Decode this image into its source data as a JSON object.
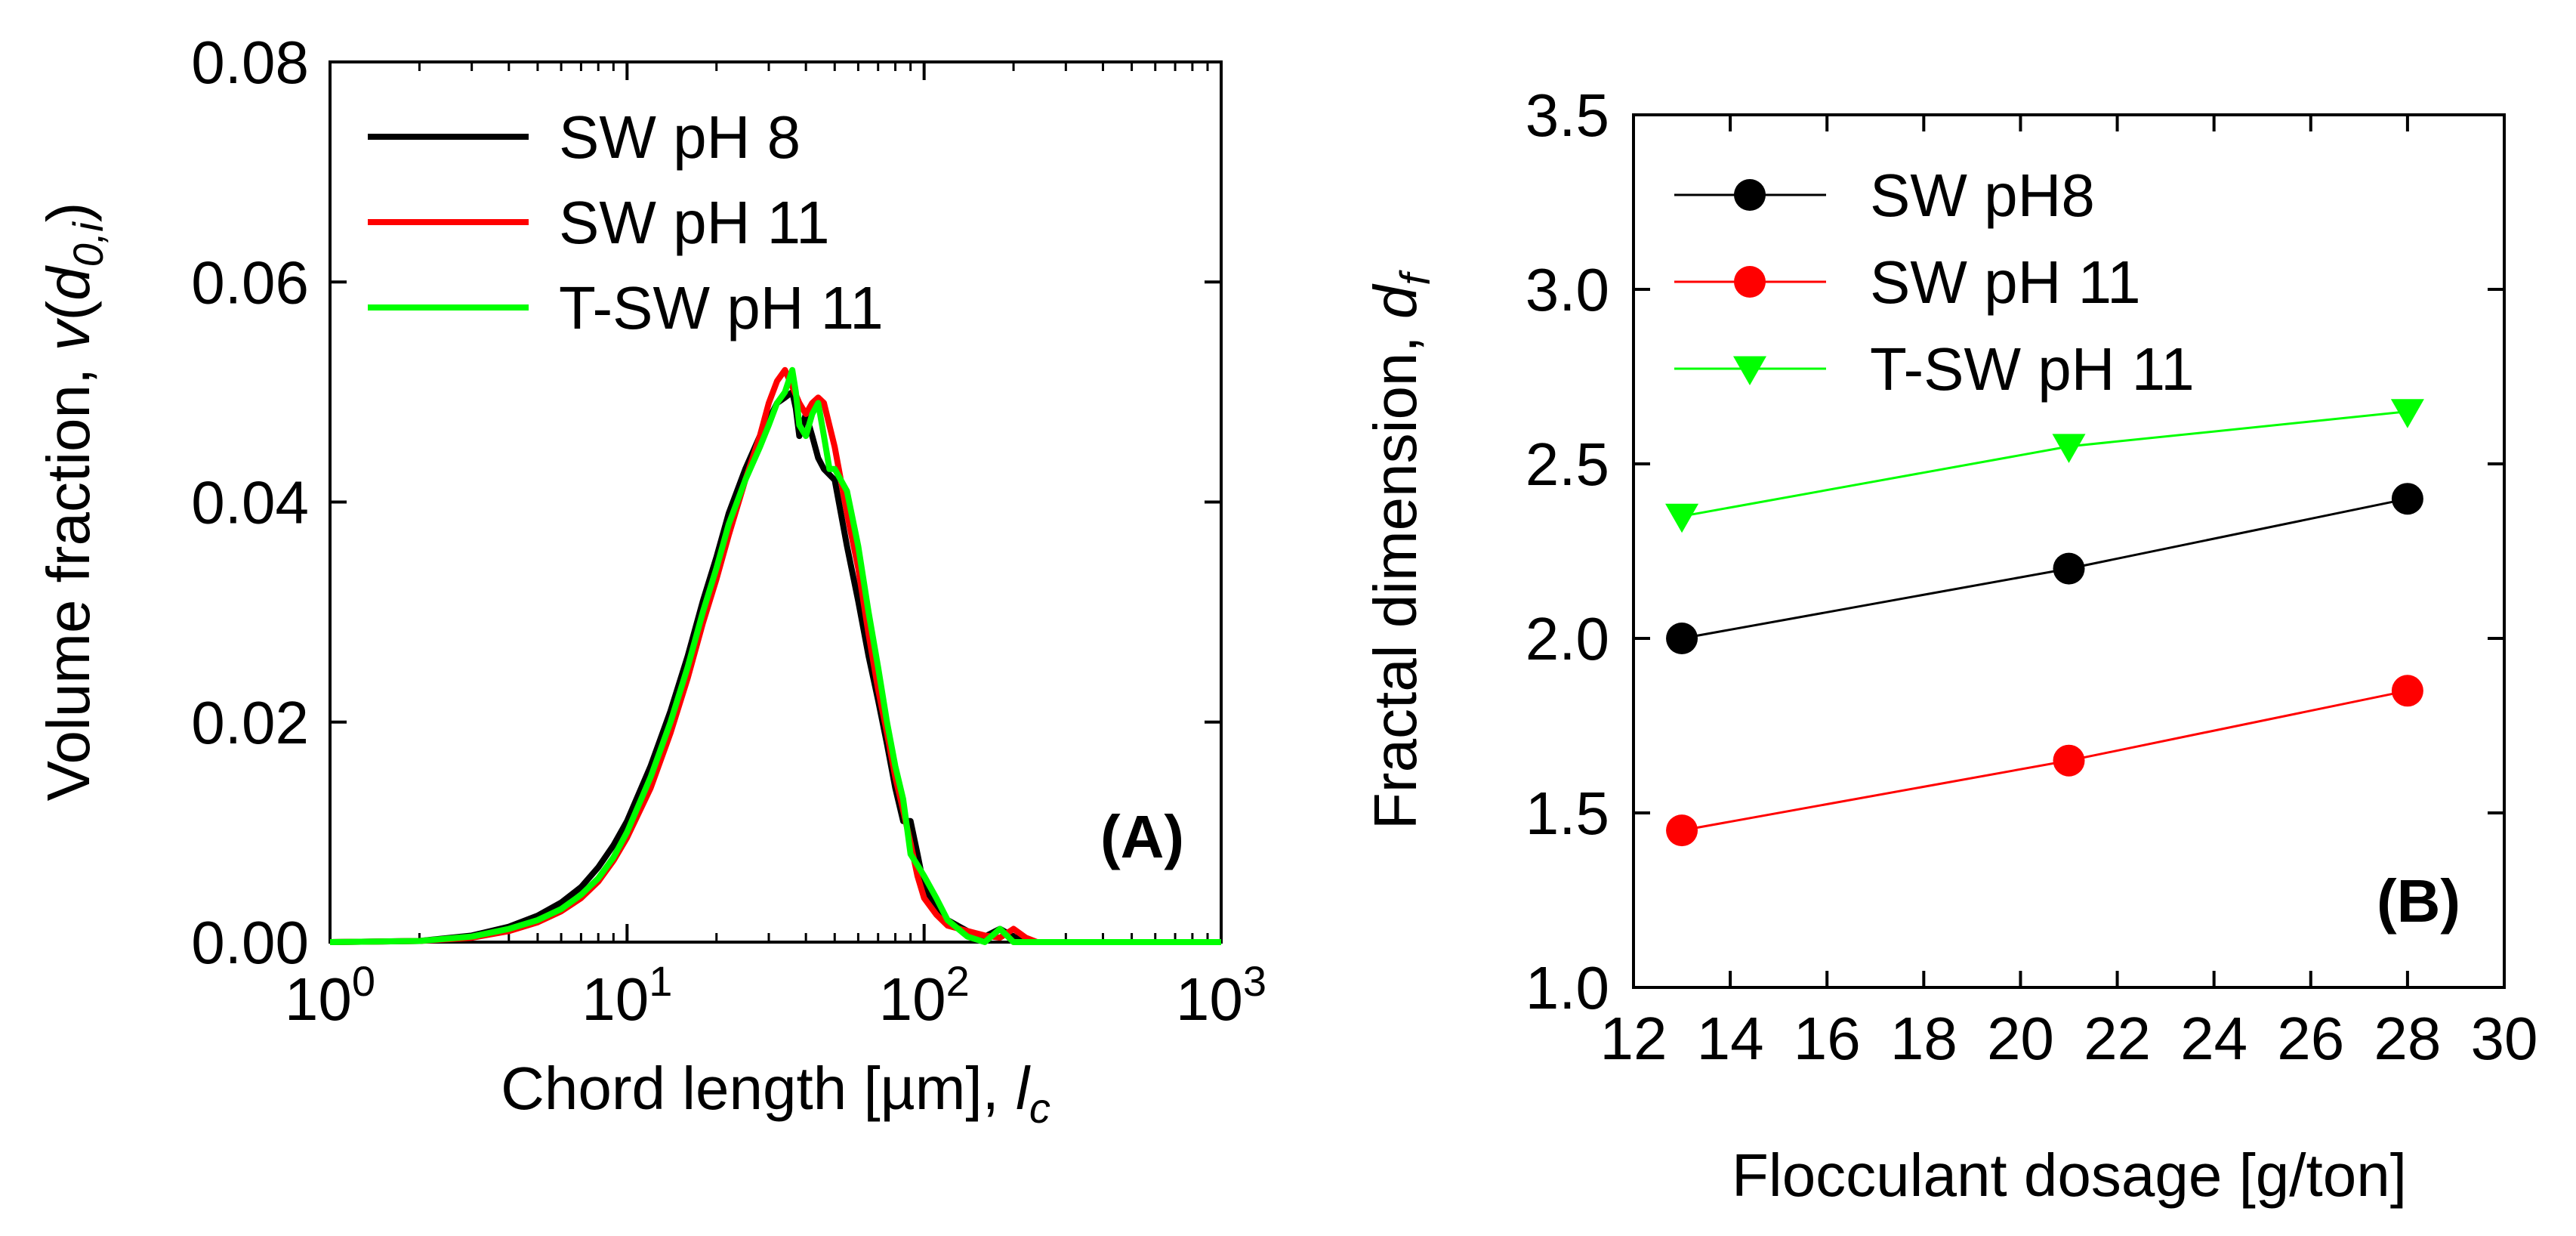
{
  "colors": {
    "sw_ph8": "#000000",
    "sw_ph11": "#ff0000",
    "tsw_ph11": "#00ff00"
  },
  "chart_data": [
    {
      "panel": "(A)",
      "type": "line",
      "xscale": "log",
      "xlim": [
        1,
        1000
      ],
      "ylim": [
        0,
        0.08
      ],
      "x_ticks": [
        1,
        10,
        100,
        1000
      ],
      "x_tick_labels": [
        {
          "base": "10",
          "exp": "0"
        },
        {
          "base": "10",
          "exp": "1"
        },
        {
          "base": "10",
          "exp": "2"
        },
        {
          "base": "10",
          "exp": "3"
        }
      ],
      "y_ticks": [
        0,
        0.02,
        0.04,
        0.06,
        0.08
      ],
      "y_tick_labels": [
        "0.00",
        "0.02",
        "0.04",
        "0.06",
        "0.08"
      ],
      "xlabel": {
        "text": "Chord length [µm], ",
        "var": "l",
        "sub": "c"
      },
      "ylabel": {
        "text": "Volume fraction, ",
        "var": "v",
        "open": "(",
        "inner": "d",
        "sub": "0,i",
        "close": ")"
      },
      "legend_position": "top-left",
      "grid": false,
      "series": [
        {
          "name": "SW pH 8",
          "color_key": "sw_ph8",
          "points": [
            [
              1,
              0
            ],
            [
              2,
              0.0001
            ],
            [
              3,
              0.0006
            ],
            [
              4,
              0.0014
            ],
            [
              5,
              0.0024
            ],
            [
              6,
              0.0036
            ],
            [
              7,
              0.005
            ],
            [
              8,
              0.0068
            ],
            [
              9,
              0.0088
            ],
            [
              10,
              0.011
            ],
            [
              12,
              0.016
            ],
            [
              14,
              0.021
            ],
            [
              16,
              0.026
            ],
            [
              18,
              0.031
            ],
            [
              20,
              0.035
            ],
            [
              22,
              0.039
            ],
            [
              25,
              0.043
            ],
            [
              28,
              0.046
            ],
            [
              30,
              0.0475
            ],
            [
              32,
              0.049
            ],
            [
              34,
              0.0495
            ],
            [
              36,
              0.05
            ],
            [
              37,
              0.0485
            ],
            [
              38,
              0.046
            ],
            [
              39,
              0.047
            ],
            [
              40,
              0.048
            ],
            [
              42,
              0.046
            ],
            [
              44,
              0.044
            ],
            [
              46,
              0.043
            ],
            [
              50,
              0.042
            ],
            [
              55,
              0.036
            ],
            [
              60,
              0.031
            ],
            [
              65,
              0.026
            ],
            [
              70,
              0.022
            ],
            [
              75,
              0.018
            ],
            [
              80,
              0.014
            ],
            [
              85,
              0.011
            ],
            [
              90,
              0.011
            ],
            [
              95,
              0.008
            ],
            [
              100,
              0.005
            ],
            [
              110,
              0.003
            ],
            [
              120,
              0.002
            ],
            [
              140,
              0.001
            ],
            [
              160,
              0.0005
            ],
            [
              180,
              0.0012
            ],
            [
              200,
              0.0005
            ],
            [
              220,
              0
            ],
            [
              1000,
              0
            ]
          ]
        },
        {
          "name": "SW pH 11",
          "color_key": "sw_ph11",
          "points": [
            [
              1,
              0
            ],
            [
              2,
              0.0001
            ],
            [
              3,
              0.0004
            ],
            [
              4,
              0.001
            ],
            [
              5,
              0.0018
            ],
            [
              6,
              0.0028
            ],
            [
              7,
              0.004
            ],
            [
              8,
              0.0055
            ],
            [
              9,
              0.0074
            ],
            [
              10,
              0.0095
            ],
            [
              12,
              0.014
            ],
            [
              14,
              0.019
            ],
            [
              16,
              0.024
            ],
            [
              18,
              0.029
            ],
            [
              20,
              0.033
            ],
            [
              22,
              0.037
            ],
            [
              25,
              0.042
            ],
            [
              28,
              0.046
            ],
            [
              30,
              0.049
            ],
            [
              32,
              0.051
            ],
            [
              34,
              0.052
            ],
            [
              36,
              0.0505
            ],
            [
              38,
              0.049
            ],
            [
              40,
              0.048
            ],
            [
              42,
              0.049
            ],
            [
              44,
              0.0495
            ],
            [
              46,
              0.049
            ],
            [
              50,
              0.045
            ],
            [
              55,
              0.039
            ],
            [
              60,
              0.034
            ],
            [
              65,
              0.028
            ],
            [
              70,
              0.023
            ],
            [
              75,
              0.019
            ],
            [
              80,
              0.015
            ],
            [
              85,
              0.012
            ],
            [
              90,
              0.009
            ],
            [
              95,
              0.006
            ],
            [
              100,
              0.004
            ],
            [
              110,
              0.0025
            ],
            [
              120,
              0.0015
            ],
            [
              140,
              0.001
            ],
            [
              160,
              0.0006
            ],
            [
              180,
              0.0004
            ],
            [
              200,
              0.0012
            ],
            [
              220,
              0.0004
            ],
            [
              240,
              0
            ],
            [
              1000,
              0
            ]
          ]
        },
        {
          "name": "T-SW pH 11",
          "color_key": "tsw_ph11",
          "points": [
            [
              1,
              0
            ],
            [
              2,
              0.0001
            ],
            [
              3,
              0.0005
            ],
            [
              4,
              0.0012
            ],
            [
              5,
              0.002
            ],
            [
              6,
              0.003
            ],
            [
              7,
              0.0043
            ],
            [
              8,
              0.0058
            ],
            [
              9,
              0.0077
            ],
            [
              10,
              0.01
            ],
            [
              12,
              0.015
            ],
            [
              14,
              0.02
            ],
            [
              16,
              0.025
            ],
            [
              18,
              0.03
            ],
            [
              20,
              0.034
            ],
            [
              22,
              0.038
            ],
            [
              25,
              0.042
            ],
            [
              28,
              0.045
            ],
            [
              30,
              0.047
            ],
            [
              32,
              0.049
            ],
            [
              34,
              0.05
            ],
            [
              36,
              0.052
            ],
            [
              37,
              0.05
            ],
            [
              38,
              0.047
            ],
            [
              40,
              0.046
            ],
            [
              42,
              0.048
            ],
            [
              44,
              0.049
            ],
            [
              46,
              0.046
            ],
            [
              48,
              0.043
            ],
            [
              50,
              0.043
            ],
            [
              55,
              0.041
            ],
            [
              60,
              0.036
            ],
            [
              65,
              0.03
            ],
            [
              70,
              0.025
            ],
            [
              75,
              0.02
            ],
            [
              80,
              0.016
            ],
            [
              85,
              0.013
            ],
            [
              88,
              0.01
            ],
            [
              90,
              0.008
            ],
            [
              95,
              0.007
            ],
            [
              100,
              0.006
            ],
            [
              110,
              0.004
            ],
            [
              120,
              0.002
            ],
            [
              140,
              0.0005
            ],
            [
              160,
              0
            ],
            [
              180,
              0.0012
            ],
            [
              200,
              0
            ],
            [
              1000,
              0
            ]
          ]
        }
      ]
    },
    {
      "panel": "(B)",
      "type": "line",
      "xlim": [
        12,
        30
      ],
      "ylim": [
        1.0,
        3.5
      ],
      "x_ticks": [
        12,
        14,
        16,
        18,
        20,
        22,
        24,
        26,
        28,
        30
      ],
      "x_tick_labels": [
        "12",
        "14",
        "16",
        "18",
        "20",
        "22",
        "24",
        "26",
        "28",
        "30"
      ],
      "y_ticks": [
        1.0,
        1.5,
        2.0,
        2.5,
        3.0,
        3.5
      ],
      "y_tick_labels": [
        "1.0",
        "1.5",
        "2.0",
        "2.5",
        "3.0",
        "3.5"
      ],
      "xlabel": {
        "text": "Flocculant dosage [g/ton]"
      },
      "ylabel": {
        "text": "Fractal dimension, ",
        "var": "d",
        "sub": "f"
      },
      "legend_position": "top-left",
      "grid": false,
      "x": [
        13,
        21,
        28
      ],
      "series": [
        {
          "name": "SW pH8",
          "color_key": "sw_ph8",
          "marker": "circle",
          "values": [
            2.0,
            2.2,
            2.4
          ]
        },
        {
          "name": "SW pH 11",
          "color_key": "sw_ph11",
          "marker": "circle",
          "values": [
            1.45,
            1.65,
            1.85
          ]
        },
        {
          "name": "T-SW pH 11",
          "color_key": "tsw_ph11",
          "marker": "triangle-down",
          "values": [
            2.35,
            2.55,
            2.65
          ]
        }
      ]
    }
  ]
}
